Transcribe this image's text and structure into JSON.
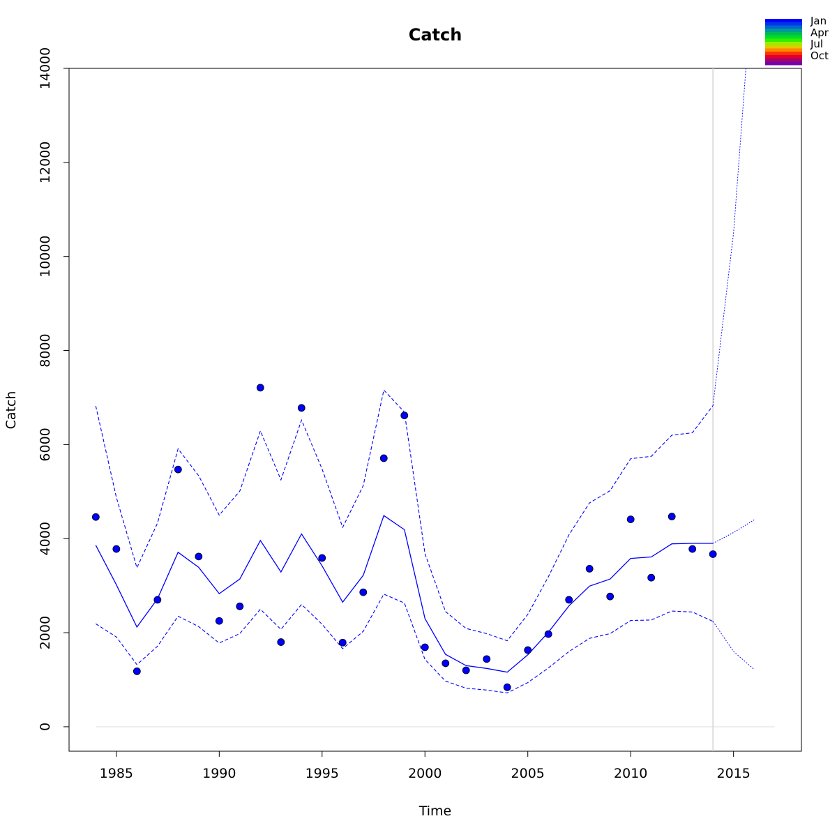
{
  "chart_data": {
    "type": "line",
    "title": "Catch",
    "xlabel": "Time",
    "ylabel": "Catch",
    "xlim": [
      1982.7,
      2018.3
    ],
    "ylim": [
      -520,
      14000
    ],
    "xticks": [
      1985,
      1990,
      1995,
      2000,
      2005,
      2010,
      2015
    ],
    "yticks": [
      0,
      2000,
      4000,
      6000,
      8000,
      10000,
      12000,
      14000
    ],
    "grid": false,
    "vline_x": 2014,
    "zero_line": [
      1984,
      2017
    ],
    "legend": {
      "placement": "top-right",
      "labels": [
        "Jan",
        "Apr",
        "Jul",
        "Oct"
      ],
      "colors": [
        "#0000ff",
        "#0033ee",
        "#0066cc",
        "#009999",
        "#00bb55",
        "#00dd22",
        "#33ee00",
        "#99ee00",
        "#ddcc00",
        "#ff8800",
        "#ff3300",
        "#dd0033",
        "#aa0066",
        "#7700aa"
      ]
    },
    "series": [
      {
        "style": "solid",
        "color": "#0000ff",
        "x": [
          1984,
          1985,
          1986,
          1987,
          1988,
          1989,
          1990,
          1991,
          1992,
          1993,
          1994,
          1995,
          1996,
          1997,
          1998,
          1999,
          2000,
          2001,
          2002,
          2003,
          2004,
          2005,
          2006,
          2007,
          2008,
          2009,
          2010,
          2011,
          2012,
          2013,
          2014
        ],
        "values": [
          3860,
          3020,
          2120,
          2720,
          3710,
          3390,
          2830,
          3140,
          3960,
          3290,
          4100,
          3420,
          2650,
          3220,
          4490,
          4190,
          2300,
          1540,
          1300,
          1240,
          1160,
          1530,
          2010,
          2570,
          2990,
          3140,
          3580,
          3610,
          3890,
          3900,
          3900
        ]
      },
      {
        "style": "dashed",
        "color": "#0000ff",
        "x": [
          1984,
          1985,
          1986,
          1987,
          1988,
          1989,
          1990,
          1991,
          1992,
          1993,
          1994,
          1995,
          1996,
          1997,
          1998,
          1999,
          2000,
          2001,
          2002,
          2003,
          2004,
          2005,
          2006,
          2007,
          2008,
          2009,
          2010,
          2011,
          2012,
          2013,
          2014
        ],
        "values": [
          6820,
          4880,
          3380,
          4330,
          5910,
          5340,
          4500,
          5010,
          6290,
          5250,
          6520,
          5480,
          4240,
          5130,
          7160,
          6690,
          3680,
          2450,
          2090,
          1980,
          1830,
          2390,
          3190,
          4080,
          4760,
          5020,
          5700,
          5750,
          6200,
          6250,
          6830
        ]
      },
      {
        "style": "dashed",
        "color": "#0000ff",
        "x": [
          1984,
          1985,
          1986,
          1987,
          1988,
          1989,
          1990,
          1991,
          1992,
          1993,
          1994,
          1995,
          1996,
          1997,
          1998,
          1999,
          2000,
          2001,
          2002,
          2003,
          2004,
          2005,
          2006,
          2007,
          2008,
          2009,
          2010,
          2011,
          2012,
          2013,
          2014
        ],
        "values": [
          2190,
          1910,
          1320,
          1710,
          2350,
          2130,
          1780,
          1980,
          2500,
          2070,
          2600,
          2180,
          1660,
          2030,
          2820,
          2630,
          1430,
          970,
          820,
          780,
          720,
          940,
          1250,
          1600,
          1880,
          1980,
          2260,
          2270,
          2460,
          2440,
          2240
        ]
      },
      {
        "style": "dotted",
        "color": "#0000ff",
        "x": [
          2014,
          2015,
          2016
        ],
        "values": [
          3900,
          4130,
          4400
        ]
      },
      {
        "style": "dotted-thin",
        "color": "#0000ff",
        "x": [
          2014,
          2015,
          2015.6,
          2016
        ],
        "values": [
          6830,
          10500,
          14000,
          17500
        ]
      },
      {
        "style": "dotted-thin",
        "color": "#0000ff",
        "x": [
          2014,
          2015,
          2016
        ],
        "values": [
          2240,
          1600,
          1220
        ]
      }
    ],
    "points": {
      "color": "#0000ff",
      "x": [
        1984,
        1985,
        1986,
        1987,
        1988,
        1989,
        1990,
        1991,
        1992,
        1993,
        1994,
        1995,
        1996,
        1997,
        1998,
        1999,
        2000,
        2001,
        2002,
        2003,
        2004,
        2005,
        2006,
        2007,
        2008,
        2009,
        2010,
        2011,
        2012,
        2013,
        2014
      ],
      "values": [
        4460,
        3780,
        1180,
        2700,
        5470,
        3620,
        2250,
        2560,
        7210,
        1800,
        6780,
        3590,
        1790,
        2860,
        5710,
        6620,
        1690,
        1350,
        1200,
        1440,
        840,
        1630,
        1970,
        2700,
        3360,
        2770,
        4410,
        3170,
        4470,
        3780,
        3670
      ]
    }
  }
}
